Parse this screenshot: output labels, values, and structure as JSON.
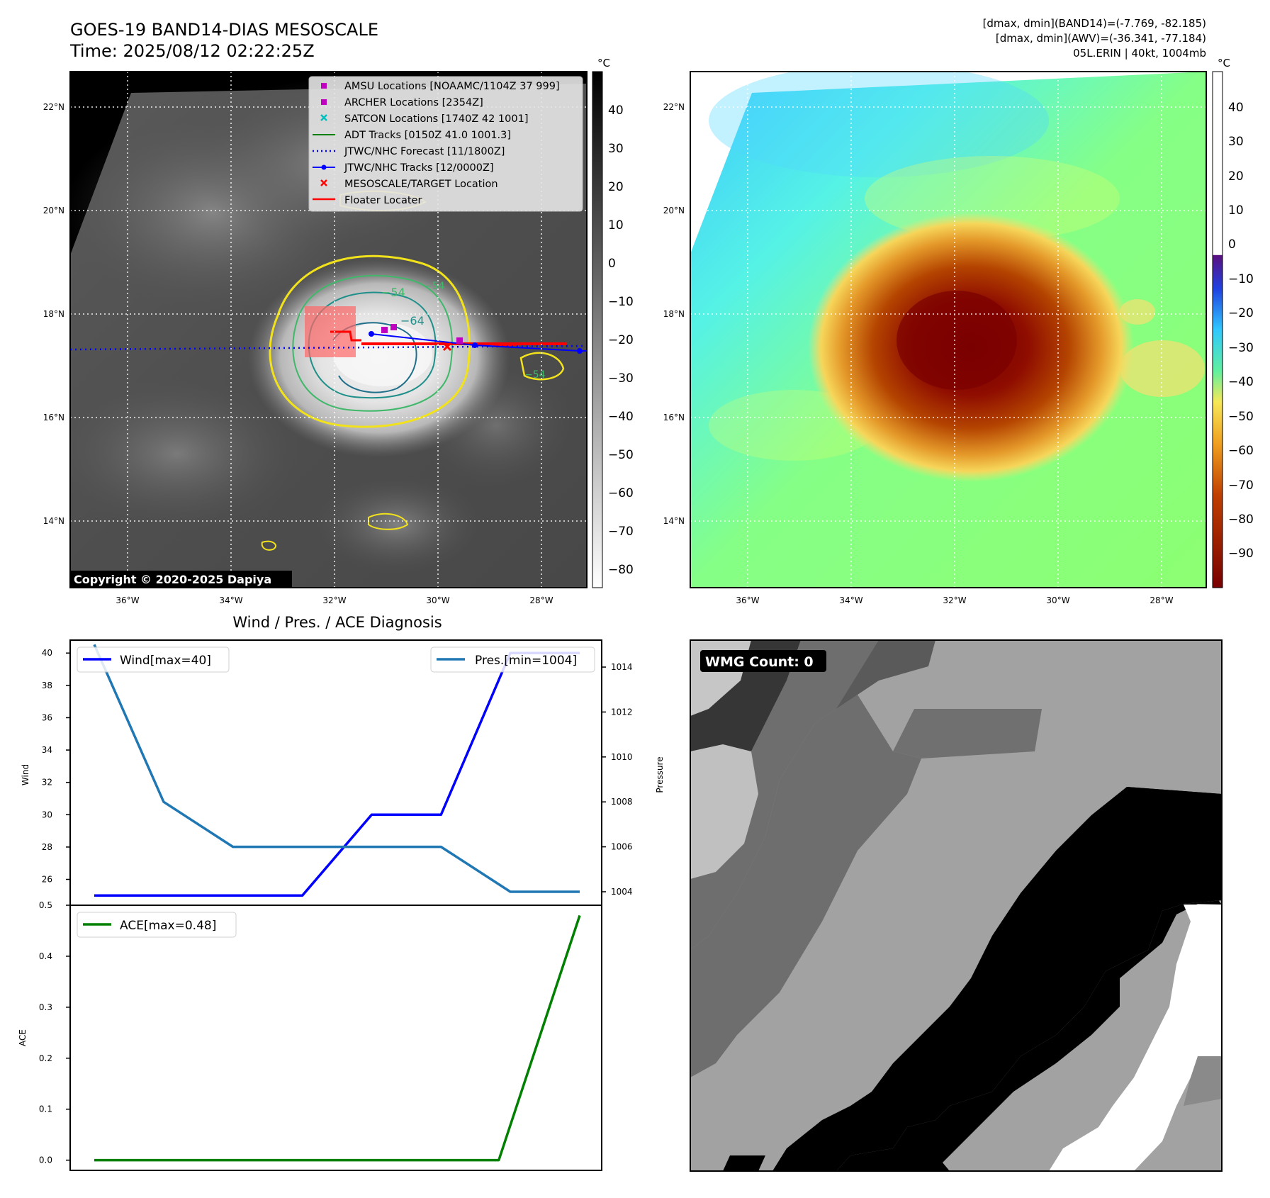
{
  "header": {
    "title": "GOES-19 BAND14-DIAS MESOSCALE",
    "time": "Time: 2025/08/12 02:22:25Z",
    "stats_band14": "[dmax, dmin](BAND14)=(-7.769, -82.185)",
    "stats_awv": "[dmax, dmin](AWV)=(-36.341, -77.184)",
    "storm": "05L.ERIN | 40kt, 1004mb"
  },
  "copyright": "Copyright © 2020-2025 Dapiya",
  "map": {
    "lat_ticks": [
      "22°N",
      "20°N",
      "18°N",
      "16°N",
      "14°N"
    ],
    "lon_ticks": [
      "36°W",
      "34°W",
      "32°W",
      "30°W",
      "28°W"
    ],
    "contour_labels": [
      "−54",
      "−64",
      "−54",
      "−54"
    ],
    "colorbar_unit": "°C",
    "gray_colorbar_ticks": [
      "40",
      "30",
      "20",
      "10",
      "0",
      "−10",
      "−20",
      "−30",
      "−40",
      "−50",
      "−60",
      "−70",
      "−80"
    ],
    "color_colorbar_ticks": [
      "40",
      "30",
      "20",
      "10",
      "0",
      "−10",
      "−20",
      "−30",
      "−40",
      "−50",
      "−60",
      "−70",
      "−80",
      "−90"
    ],
    "legend": [
      {
        "label": "AMSU Locations [NOAAMC/1104Z 37 999]",
        "marker": "square",
        "color": "#bf00bf"
      },
      {
        "label": "ARCHER Locations [2354Z]",
        "marker": "square",
        "color": "#bf00bf"
      },
      {
        "label": "SATCON Locations [1740Z 42 1001]",
        "marker": "x",
        "color": "#00bfbf"
      },
      {
        "label": "ADT Tracks [0150Z 41.0 1001.3]",
        "marker": "line",
        "color": "#008000"
      },
      {
        "label": "JTWC/NHC Forecast [11/1800Z]",
        "marker": "dotted",
        "color": "#0000ff"
      },
      {
        "label": "JTWC/NHC Tracks [12/0000Z]",
        "marker": "line-dot",
        "color": "#0000ff"
      },
      {
        "label": "MESOSCALE/TARGET Location",
        "marker": "x",
        "color": "#ff0000"
      },
      {
        "label": "Floater Locater",
        "marker": "line",
        "color": "#ff0000"
      }
    ]
  },
  "diagnosis": {
    "title": "Wind / Pres. / ACE Diagnosis",
    "wind_ylabel": "Wind",
    "pres_ylabel": "Pressure",
    "ace_ylabel": "ACE",
    "wind_legend": "Wind[max=40]",
    "pres_legend": "Pres.[min=1004]",
    "ace_legend": "ACE[max=0.48]",
    "wind_ticks": [
      "40",
      "38",
      "36",
      "34",
      "32",
      "30",
      "28",
      "26"
    ],
    "pres_ticks": [
      "1014",
      "1012",
      "1010",
      "1008",
      "1006",
      "1004"
    ],
    "ace_ticks": [
      "0.5",
      "0.4",
      "0.3",
      "0.2",
      "0.1",
      "0.0"
    ]
  },
  "wmg": {
    "label": "WMG Count: 0"
  },
  "colors": {
    "wind": "#0000ff",
    "pressure": "#1f77b4",
    "ace": "#008000",
    "contour_yellow": "#f2e21c",
    "contour_green": "#3fb86a",
    "contour_teal": "#1f8f8a"
  },
  "chart_data": [
    {
      "type": "line",
      "series": [
        {
          "name": "Wind[max=40]",
          "axis": "left",
          "x": [
            0,
            1,
            2,
            3,
            4,
            5,
            6,
            7
          ],
          "values": [
            25,
            25,
            25,
            25,
            30,
            30,
            40,
            40
          ]
        },
        {
          "name": "Pres.[min=1004]",
          "axis": "right",
          "x": [
            0,
            1,
            2,
            3,
            4,
            5,
            6,
            7
          ],
          "values": [
            1015,
            1008,
            1006,
            1006,
            1006,
            1006,
            1004,
            1004
          ]
        }
      ],
      "xlabel": "",
      "ylabel": "Wind",
      "ylabel_right": "Pressure",
      "ylim": [
        24.4,
        40.8
      ],
      "ylim_right": [
        1003.4,
        1015.2
      ],
      "title": "Wind / Pres. / ACE Diagnosis"
    },
    {
      "type": "line",
      "series": [
        {
          "name": "ACE[max=0.48]",
          "x": [
            0,
            1,
            2,
            3,
            4,
            5,
            6
          ],
          "values": [
            0,
            0,
            0,
            0,
            0,
            0,
            0.48
          ]
        }
      ],
      "xlabel": "",
      "ylabel": "ACE",
      "ylim": [
        -0.02,
        0.5
      ]
    }
  ]
}
